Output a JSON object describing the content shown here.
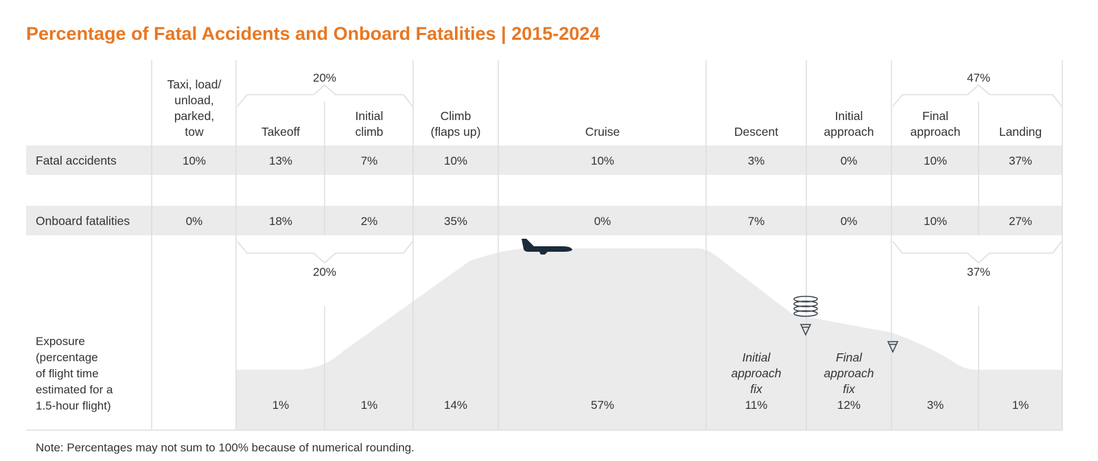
{
  "title": "Percentage of Fatal Accidents and Onboard Fatalities | 2015-2024",
  "note": "Note: Percentages may not sum to 100% because of numerical rounding.",
  "colors": {
    "title": "#e87722",
    "row_band": "#ebebeb",
    "profile_fill": "#ebebeb",
    "divider": "#dddddd",
    "text": "#333333",
    "aircraft": "#1c2a3a",
    "icon_stroke": "#3d4650"
  },
  "chart_data": {
    "type": "table",
    "title": "Percentage of Fatal Accidents and Onboard Fatalities | 2015-2024",
    "phases": [
      {
        "id": "taxi",
        "label_lines": [
          "Taxi, load/",
          "unload,",
          "parked,",
          "tow"
        ]
      },
      {
        "id": "takeoff",
        "label_lines": [
          "Takeoff"
        ]
      },
      {
        "id": "initial-climb",
        "label_lines": [
          "Initial",
          "climb"
        ]
      },
      {
        "id": "climb",
        "label_lines": [
          "Climb",
          "(flaps up)"
        ]
      },
      {
        "id": "cruise",
        "label_lines": [
          "Cruise"
        ]
      },
      {
        "id": "descent",
        "label_lines": [
          "Descent"
        ]
      },
      {
        "id": "initial-approach",
        "label_lines": [
          "Initial",
          "approach"
        ]
      },
      {
        "id": "final-approach",
        "label_lines": [
          "Final",
          "approach"
        ]
      },
      {
        "id": "landing",
        "label_lines": [
          "Landing"
        ]
      }
    ],
    "rows": [
      {
        "label": "Fatal accidents",
        "values": [
          "10%",
          "13%",
          "7%",
          "10%",
          "10%",
          "3%",
          "0%",
          "10%",
          "37%"
        ]
      },
      {
        "label": "Onboard fatalities",
        "values": [
          "0%",
          "18%",
          "2%",
          "35%",
          "0%",
          "7%",
          "0%",
          "10%",
          "27%"
        ]
      }
    ],
    "exposure": {
      "label_lines": [
        "Exposure",
        "(percentage",
        "of flight time",
        "estimated for a",
        "1.5-hour flight)"
      ],
      "values": [
        "",
        "1%",
        "1%",
        "14%",
        "57%",
        "11%",
        "12%",
        "3%",
        "1%"
      ]
    },
    "groups": [
      {
        "phases": [
          "takeoff",
          "initial-climb"
        ],
        "fatal_accidents": "20%",
        "onboard_fatalities": "20%"
      },
      {
        "phases": [
          "final-approach",
          "landing"
        ],
        "fatal_accidents": "47%",
        "onboard_fatalities": "37%"
      }
    ],
    "fixes": [
      {
        "label_lines": [
          "Initial",
          "approach",
          "fix"
        ]
      },
      {
        "label_lines": [
          "Final",
          "approach",
          "fix"
        ]
      }
    ]
  }
}
